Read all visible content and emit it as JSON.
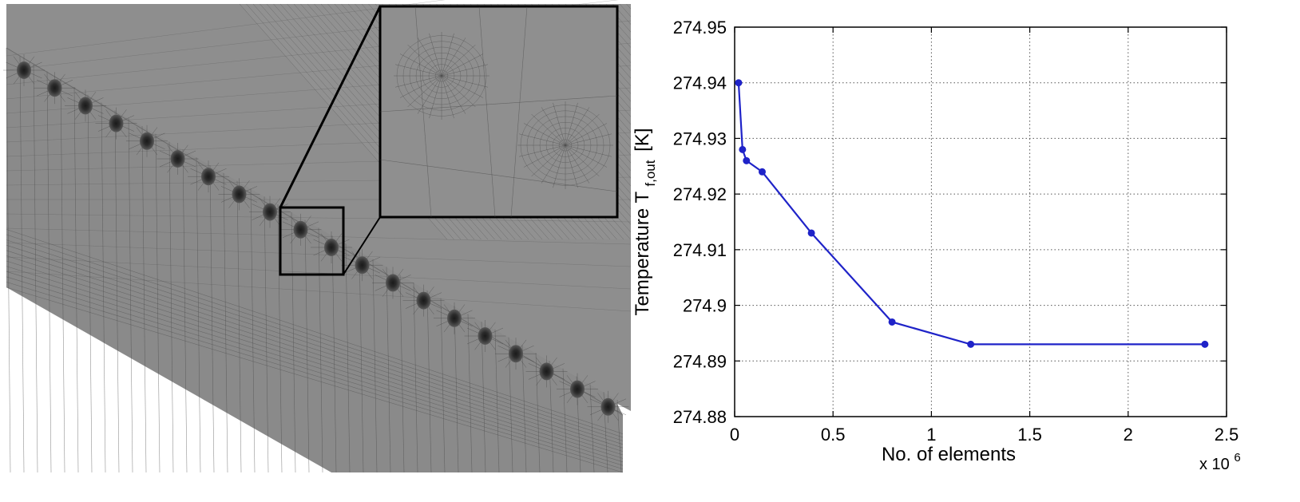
{
  "chart_data": {
    "type": "line",
    "title": "",
    "xlabel": "No. of elements",
    "x_exponent_base": "x 10",
    "x_exponent_power": "6",
    "ylabel_main": "Temperature T",
    "ylabel_sub": "f,out",
    "ylabel_unit": "[K]",
    "xlim": [
      0,
      2.5
    ],
    "ylim": [
      274.88,
      274.95
    ],
    "x_ticks": [
      0,
      0.5,
      1,
      1.5,
      2,
      2.5
    ],
    "x_tick_labels": [
      "0",
      "0.5",
      "1",
      "1.5",
      "2",
      "2.5"
    ],
    "y_ticks": [
      274.88,
      274.89,
      274.9,
      274.91,
      274.92,
      274.93,
      274.94,
      274.95
    ],
    "y_tick_labels": [
      "274.88",
      "274.89",
      "274.9",
      "274.91",
      "274.92",
      "274.93",
      "274.94",
      "274.95"
    ],
    "grid": true,
    "grid_style": "dotted",
    "series": [
      {
        "color": "#1f23c8",
        "marker": "circle",
        "x": [
          0.02,
          0.04,
          0.06,
          0.14,
          0.39,
          0.8,
          1.2,
          2.39
        ],
        "y": [
          274.94,
          274.928,
          274.926,
          274.924,
          274.913,
          274.897,
          274.893,
          274.893
        ]
      }
    ]
  },
  "mesh_figure": {
    "mesh_color": "#8c8c8c",
    "line_color": "#4a4a4a",
    "dark_color": "#3a3a3a",
    "hole_count": 20
  }
}
